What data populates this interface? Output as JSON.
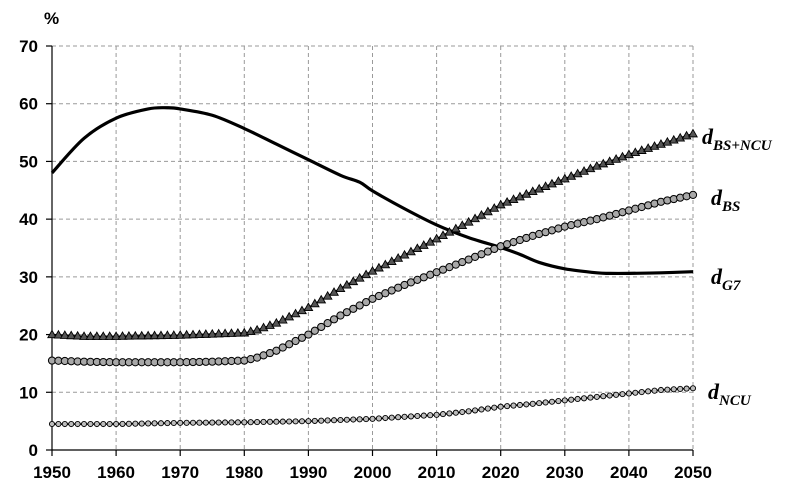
{
  "chart_data": {
    "type": "line",
    "unit_label": "%",
    "xlim": [
      1950,
      2050
    ],
    "ylim": [
      0,
      70
    ],
    "x_ticks": [
      1950,
      1960,
      1970,
      1980,
      1990,
      2000,
      2010,
      2020,
      2030,
      2040,
      2050
    ],
    "y_ticks": [
      0,
      10,
      20,
      30,
      40,
      50,
      60,
      70
    ],
    "grid": true,
    "series": [
      {
        "name": "dG7",
        "label_main": "d",
        "label_sub": "G7",
        "marker": "none",
        "points": [
          [
            1950,
            48
          ],
          [
            1955,
            54
          ],
          [
            1960,
            57.5
          ],
          [
            1965,
            59.1
          ],
          [
            1968,
            59.3
          ],
          [
            1970,
            59.1
          ],
          [
            1975,
            58.0
          ],
          [
            1980,
            55.7
          ],
          [
            1985,
            53.0
          ],
          [
            1990,
            50.3
          ],
          [
            1995,
            47.6
          ],
          [
            1998,
            46.4
          ],
          [
            2000,
            44.9
          ],
          [
            2005,
            41.8
          ],
          [
            2010,
            39.0
          ],
          [
            2015,
            36.8
          ],
          [
            2020,
            35.1
          ],
          [
            2023,
            33.9
          ],
          [
            2026,
            32.5
          ],
          [
            2030,
            31.4
          ],
          [
            2035,
            30.7
          ],
          [
            2037,
            30.6
          ],
          [
            2040,
            30.6
          ],
          [
            2045,
            30.7
          ],
          [
            2050,
            30.9
          ]
        ]
      },
      {
        "name": "dBS+NCU",
        "label_main": "d",
        "label_sub": "BS+NCU",
        "marker": "triangle",
        "points": [
          [
            1950,
            20.0
          ],
          [
            1955,
            19.7
          ],
          [
            1960,
            19.7
          ],
          [
            1965,
            19.8
          ],
          [
            1970,
            19.9
          ],
          [
            1975,
            20.1
          ],
          [
            1980,
            20.3
          ],
          [
            1982,
            20.8
          ],
          [
            1985,
            22.0
          ],
          [
            1990,
            24.7
          ],
          [
            1995,
            28.0
          ],
          [
            2000,
            31.0
          ],
          [
            2005,
            33.8
          ],
          [
            2010,
            36.6
          ],
          [
            2015,
            39.5
          ],
          [
            2020,
            42.5
          ],
          [
            2025,
            44.8
          ],
          [
            2030,
            47.0
          ],
          [
            2035,
            49.2
          ],
          [
            2040,
            51.2
          ],
          [
            2045,
            53.0
          ],
          [
            2050,
            54.8
          ]
        ]
      },
      {
        "name": "dBS",
        "label_main": "d",
        "label_sub": "BS",
        "marker": "circle",
        "points": [
          [
            1950,
            15.5
          ],
          [
            1955,
            15.3
          ],
          [
            1960,
            15.2
          ],
          [
            1965,
            15.2
          ],
          [
            1970,
            15.2
          ],
          [
            1975,
            15.3
          ],
          [
            1980,
            15.5
          ],
          [
            1982,
            16.0
          ],
          [
            1985,
            17.2
          ],
          [
            1990,
            20.0
          ],
          [
            1995,
            23.3
          ],
          [
            2000,
            26.2
          ],
          [
            2005,
            28.6
          ],
          [
            2010,
            30.8
          ],
          [
            2015,
            33.0
          ],
          [
            2020,
            35.3
          ],
          [
            2025,
            37.1
          ],
          [
            2030,
            38.7
          ],
          [
            2035,
            40.0
          ],
          [
            2040,
            41.5
          ],
          [
            2045,
            43.0
          ],
          [
            2050,
            44.2
          ]
        ]
      },
      {
        "name": "dNCU",
        "label_main": "d",
        "label_sub": "NCU",
        "marker": "circle-small",
        "points": [
          [
            1950,
            4.5
          ],
          [
            1960,
            4.5
          ],
          [
            1970,
            4.7
          ],
          [
            1980,
            4.8
          ],
          [
            1990,
            5.0
          ],
          [
            2000,
            5.4
          ],
          [
            2010,
            6.1
          ],
          [
            2015,
            6.7
          ],
          [
            2020,
            7.5
          ],
          [
            2025,
            8.0
          ],
          [
            2030,
            8.6
          ],
          [
            2035,
            9.2
          ],
          [
            2040,
            9.8
          ],
          [
            2045,
            10.4
          ],
          [
            2050,
            10.7
          ]
        ]
      }
    ]
  }
}
